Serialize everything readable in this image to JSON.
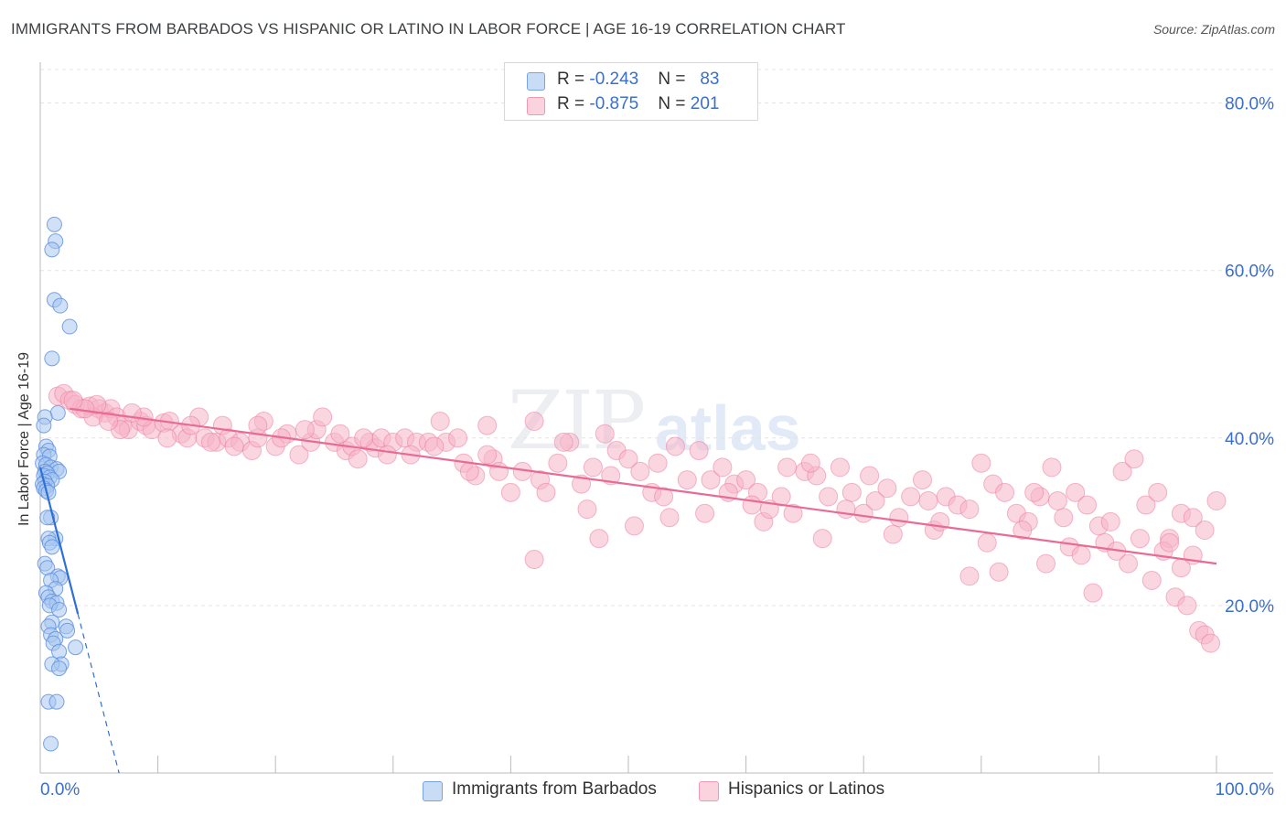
{
  "header": {
    "title": "IMMIGRANTS FROM BARBADOS VS HISPANIC OR LATINO IN LABOR FORCE | AGE 16-19 CORRELATION CHART",
    "source": "Source: ZipAtlas.com"
  },
  "watermark": {
    "zip": "ZIP",
    "atlas": "atlas"
  },
  "legend": {
    "rows": [
      {
        "r_label": "R = ",
        "r_value": "-0.243",
        "n_label": "N = ",
        "n_value": "83",
        "color": "#a8c6f0"
      },
      {
        "r_label": "R = ",
        "r_value": "-0.875",
        "n_label": "N = ",
        "n_value": "201",
        "color": "#f6b5c8"
      }
    ]
  },
  "bottom_legend": {
    "series1": "Immigrants from Barbados",
    "series2": "Hispanics or Latinos"
  },
  "chart_data": {
    "type": "scatter",
    "title": "IMMIGRANTS FROM BARBADOS VS HISPANIC OR LATINO IN LABOR FORCE | AGE 16-19 CORRELATION CHART",
    "ylabel": "In Labor Force | Age 16-19",
    "xlabel": "",
    "xlim": [
      0,
      100
    ],
    "ylim": [
      0,
      84
    ],
    "x_tick_labels": [
      "0.0%",
      "100.0%"
    ],
    "y_ticks": [
      20,
      40,
      60,
      80
    ],
    "y_tick_labels": [
      "20.0%",
      "40.0%",
      "60.0%",
      "80.0%"
    ],
    "grid": true,
    "series": [
      {
        "name": "Immigrants from Barbados",
        "color": "#5b8fdf",
        "fill": "#a8c6f0",
        "trend": {
          "x0": 0.0,
          "y0": 36.5,
          "x1": 3.2,
          "y1": 19.0,
          "dash_to_x": 6.7,
          "dash_to_y": 0.0,
          "line_color": "#2f6fd6"
        },
        "points": [
          [
            1.2,
            65.5
          ],
          [
            1.3,
            63.5
          ],
          [
            1.0,
            62.5
          ],
          [
            1.2,
            56.5
          ],
          [
            1.7,
            55.8
          ],
          [
            2.5,
            53.3
          ],
          [
            1.0,
            49.5
          ],
          [
            1.5,
            43.0
          ],
          [
            0.4,
            42.5
          ],
          [
            0.3,
            41.5
          ],
          [
            0.5,
            39.0
          ],
          [
            0.7,
            38.5
          ],
          [
            0.3,
            38.0
          ],
          [
            0.8,
            37.8
          ],
          [
            0.2,
            37.0
          ],
          [
            0.5,
            36.8
          ],
          [
            0.9,
            36.5
          ],
          [
            1.4,
            36.3
          ],
          [
            1.6,
            36.0
          ],
          [
            0.4,
            36.0
          ],
          [
            0.6,
            35.8
          ],
          [
            0.3,
            35.5
          ],
          [
            0.8,
            35.3
          ],
          [
            1.0,
            35.0
          ],
          [
            0.4,
            34.8
          ],
          [
            0.2,
            34.5
          ],
          [
            0.6,
            34.3
          ],
          [
            0.3,
            34.0
          ],
          [
            0.5,
            33.7
          ],
          [
            0.7,
            33.5
          ],
          [
            0.9,
            30.5
          ],
          [
            0.6,
            30.5
          ],
          [
            1.3,
            28.0
          ],
          [
            0.7,
            28.0
          ],
          [
            0.8,
            27.5
          ],
          [
            1.0,
            27.0
          ],
          [
            0.4,
            25.0
          ],
          [
            0.6,
            24.5
          ],
          [
            1.5,
            23.5
          ],
          [
            1.7,
            23.3
          ],
          [
            0.9,
            23.0
          ],
          [
            1.3,
            22.0
          ],
          [
            0.5,
            21.5
          ],
          [
            0.7,
            21.0
          ],
          [
            1.0,
            20.5
          ],
          [
            1.4,
            20.3
          ],
          [
            0.8,
            20.0
          ],
          [
            1.6,
            19.5
          ],
          [
            1.0,
            18.0
          ],
          [
            2.2,
            17.5
          ],
          [
            0.7,
            17.5
          ],
          [
            2.3,
            17.0
          ],
          [
            0.9,
            16.5
          ],
          [
            1.3,
            16.0
          ],
          [
            1.1,
            15.5
          ],
          [
            3.0,
            15.0
          ],
          [
            1.6,
            14.5
          ],
          [
            1.8,
            13.0
          ],
          [
            1.0,
            13.0
          ],
          [
            1.6,
            12.5
          ],
          [
            0.7,
            8.5
          ],
          [
            1.4,
            8.5
          ],
          [
            0.9,
            3.5
          ]
        ]
      },
      {
        "name": "Hispanics or Latinos",
        "color": "#ec7ea0",
        "fill": "#f6b5c8",
        "trend": {
          "x0": 2.5,
          "y0": 43.5,
          "x1": 100.0,
          "y1": 25.0,
          "line_color": "#e86b95"
        },
        "points": [
          [
            1.5,
            45.0
          ],
          [
            2.0,
            45.3
          ],
          [
            2.5,
            44.5
          ],
          [
            3.0,
            44.0
          ],
          [
            3.5,
            43.5
          ],
          [
            4.2,
            43.8
          ],
          [
            5.0,
            43.5
          ],
          [
            5.5,
            43.0
          ],
          [
            4.5,
            42.5
          ],
          [
            6.0,
            43.5
          ],
          [
            6.5,
            42.5
          ],
          [
            7.0,
            41.5
          ],
          [
            7.5,
            41.0
          ],
          [
            8.5,
            42.0
          ],
          [
            9.0,
            41.5
          ],
          [
            9.5,
            41.0
          ],
          [
            10.5,
            41.8
          ],
          [
            11.0,
            42.0
          ],
          [
            12.0,
            40.5
          ],
          [
            12.5,
            40.0
          ],
          [
            13.5,
            42.5
          ],
          [
            14.0,
            40.0
          ],
          [
            15.0,
            39.5
          ],
          [
            15.5,
            41.5
          ],
          [
            16.0,
            40.0
          ],
          [
            17.0,
            39.5
          ],
          [
            18.0,
            38.5
          ],
          [
            18.5,
            40.0
          ],
          [
            19.0,
            42.0
          ],
          [
            20.0,
            39.0
          ],
          [
            21.0,
            40.5
          ],
          [
            22.0,
            38.0
          ],
          [
            23.0,
            39.5
          ],
          [
            23.5,
            41.0
          ],
          [
            24.0,
            42.5
          ],
          [
            25.0,
            39.5
          ],
          [
            26.0,
            38.5
          ],
          [
            26.5,
            39.0
          ],
          [
            27.0,
            37.5
          ],
          [
            28.0,
            39.5
          ],
          [
            28.5,
            38.8
          ],
          [
            29.0,
            40.0
          ],
          [
            30.0,
            39.5
          ],
          [
            31.0,
            40.0
          ],
          [
            32.0,
            39.5
          ],
          [
            33.0,
            39.5
          ],
          [
            34.0,
            42.0
          ],
          [
            34.5,
            39.5
          ],
          [
            35.5,
            40.0
          ],
          [
            36.0,
            37.0
          ],
          [
            37.0,
            35.5
          ],
          [
            38.0,
            41.5
          ],
          [
            38.5,
            37.5
          ],
          [
            39.0,
            36.0
          ],
          [
            40.0,
            33.5
          ],
          [
            41.0,
            36.0
          ],
          [
            42.0,
            42.0
          ],
          [
            42.5,
            35.0
          ],
          [
            43.0,
            33.5
          ],
          [
            44.0,
            37.0
          ],
          [
            45.0,
            39.5
          ],
          [
            46.0,
            34.5
          ],
          [
            47.0,
            36.5
          ],
          [
            48.0,
            40.5
          ],
          [
            48.5,
            35.5
          ],
          [
            49.0,
            38.5
          ],
          [
            50.0,
            37.5
          ],
          [
            51.0,
            36.0
          ],
          [
            52.0,
            33.5
          ],
          [
            53.0,
            33.0
          ],
          [
            54.0,
            39.0
          ],
          [
            55.0,
            35.0
          ],
          [
            56.0,
            38.5
          ],
          [
            57.0,
            35.0
          ],
          [
            58.0,
            36.5
          ],
          [
            59.0,
            34.5
          ],
          [
            60.0,
            35.0
          ],
          [
            61.0,
            33.5
          ],
          [
            61.5,
            30.0
          ],
          [
            62.0,
            31.5
          ],
          [
            63.0,
            33.0
          ],
          [
            64.0,
            31.0
          ],
          [
            65.0,
            36.0
          ],
          [
            66.0,
            35.5
          ],
          [
            66.5,
            28.0
          ],
          [
            67.0,
            33.0
          ],
          [
            68.0,
            36.5
          ],
          [
            69.0,
            33.5
          ],
          [
            70.0,
            31.0
          ],
          [
            71.0,
            32.5
          ],
          [
            72.0,
            34.0
          ],
          [
            73.0,
            30.5
          ],
          [
            74.0,
            33.0
          ],
          [
            75.0,
            35.0
          ],
          [
            76.0,
            29.0
          ],
          [
            77.0,
            33.0
          ],
          [
            78.0,
            32.0
          ],
          [
            79.0,
            31.5
          ],
          [
            80.0,
            37.0
          ],
          [
            81.0,
            34.5
          ],
          [
            82.0,
            33.5
          ],
          [
            83.0,
            31.0
          ],
          [
            84.0,
            30.0
          ],
          [
            85.0,
            33.0
          ],
          [
            86.0,
            36.5
          ],
          [
            87.0,
            30.5
          ],
          [
            88.0,
            33.5
          ],
          [
            89.0,
            32.0
          ],
          [
            90.0,
            29.5
          ],
          [
            91.0,
            30.0
          ],
          [
            92.0,
            36.0
          ],
          [
            93.0,
            37.5
          ],
          [
            94.0,
            32.0
          ],
          [
            95.0,
            33.5
          ],
          [
            96.0,
            28.0
          ],
          [
            97.0,
            31.0
          ],
          [
            98.0,
            30.5
          ],
          [
            99.0,
            29.0
          ],
          [
            100.0,
            32.5
          ],
          [
            42.0,
            25.5
          ],
          [
            79.0,
            23.5
          ],
          [
            81.5,
            24.0
          ],
          [
            89.5,
            21.5
          ],
          [
            94.5,
            23.0
          ],
          [
            96.5,
            21.0
          ],
          [
            97.5,
            20.0
          ],
          [
            98.5,
            17.0
          ],
          [
            99.0,
            16.5
          ],
          [
            99.5,
            15.5
          ],
          [
            38.0,
            38.0
          ],
          [
            44.5,
            39.5
          ],
          [
            52.5,
            37.0
          ],
          [
            58.5,
            33.5
          ],
          [
            63.5,
            36.5
          ],
          [
            68.5,
            31.5
          ],
          [
            72.5,
            28.5
          ],
          [
            76.5,
            30.0
          ],
          [
            80.5,
            27.5
          ],
          [
            83.5,
            29.0
          ],
          [
            85.5,
            25.0
          ],
          [
            87.5,
            27.0
          ],
          [
            88.5,
            26.0
          ],
          [
            90.5,
            27.5
          ],
          [
            91.5,
            26.5
          ],
          [
            92.5,
            25.0
          ],
          [
            93.5,
            28.0
          ],
          [
            95.5,
            26.5
          ],
          [
            96.0,
            27.5
          ],
          [
            97.0,
            24.5
          ],
          [
            98.0,
            26.0
          ],
          [
            84.5,
            33.5
          ],
          [
            86.5,
            32.5
          ],
          [
            75.5,
            32.5
          ],
          [
            70.5,
            35.5
          ],
          [
            65.5,
            37.0
          ],
          [
            60.5,
            32.0
          ],
          [
            56.5,
            31.0
          ],
          [
            53.5,
            30.5
          ],
          [
            50.5,
            29.5
          ],
          [
            47.5,
            28.0
          ],
          [
            46.5,
            31.5
          ],
          [
            36.5,
            36.0
          ],
          [
            33.5,
            39.0
          ],
          [
            31.5,
            38.0
          ],
          [
            29.5,
            38.0
          ],
          [
            27.5,
            40.0
          ],
          [
            25.5,
            40.5
          ],
          [
            22.5,
            41.0
          ],
          [
            20.5,
            40.0
          ],
          [
            18.5,
            41.5
          ],
          [
            16.5,
            39.0
          ],
          [
            14.5,
            39.5
          ],
          [
            12.8,
            41.5
          ],
          [
            10.8,
            40.0
          ],
          [
            8.8,
            42.5
          ],
          [
            7.8,
            43.0
          ],
          [
            6.8,
            41.0
          ],
          [
            5.8,
            42.0
          ],
          [
            4.8,
            44.0
          ],
          [
            3.8,
            43.5
          ],
          [
            2.8,
            44.5
          ]
        ]
      }
    ]
  }
}
